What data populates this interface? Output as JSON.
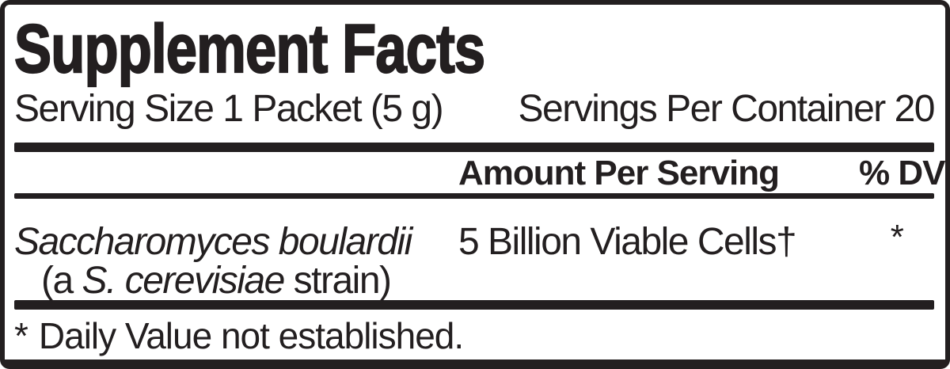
{
  "colors": {
    "ink": "#231f20",
    "background": "#ffffff"
  },
  "label": {
    "title": "Supplement Facts",
    "serving_size": "Serving Size 1 Packet (5 g)",
    "servings_per_container": "Servings Per Container 20",
    "column_headers": {
      "amount": "Amount Per Serving",
      "daily_value": "% DV"
    },
    "rows": [
      {
        "name_primary": "Saccharomyces boulardii",
        "name_secondary_prefix": "(a ",
        "name_secondary_species": "S. cerevisiae",
        "name_secondary_suffix": " strain)",
        "amount": "5 Billion Viable Cells†",
        "daily_value": "*"
      }
    ],
    "footnote": {
      "symbol": "*",
      "text": "Daily Value not established."
    }
  }
}
